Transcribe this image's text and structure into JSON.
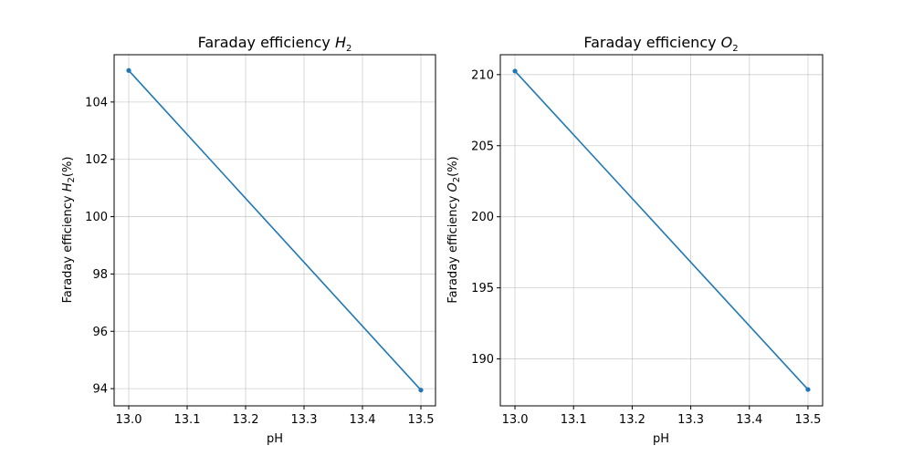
{
  "chart_data": [
    {
      "type": "line",
      "title": "Faraday efficiency ",
      "title_var": "H",
      "title_sub": "2",
      "xlabel": "pH",
      "ylabel_prefix": "Faraday efficiency ",
      "ylabel_var": "H",
      "ylabel_sub": "2",
      "ylabel_suffix": "(%)",
      "x": [
        13.0,
        13.5
      ],
      "y": [
        105.1,
        93.95
      ],
      "xlim": [
        12.975,
        13.525
      ],
      "ylim": [
        93.4,
        105.65
      ],
      "xticks": [
        13.0,
        13.1,
        13.2,
        13.3,
        13.4,
        13.5
      ],
      "xtick_labels": [
        "13.0",
        "13.1",
        "13.2",
        "13.3",
        "13.4",
        "13.5"
      ],
      "yticks": [
        94,
        96,
        98,
        100,
        102,
        104
      ],
      "ytick_labels": [
        "94",
        "96",
        "98",
        "100",
        "102",
        "104"
      ],
      "grid": true,
      "color": "#1f77b4"
    },
    {
      "type": "line",
      "title": "Faraday efficiency ",
      "title_var": "O",
      "title_sub": "2",
      "xlabel": "pH",
      "ylabel_prefix": "Faraday efficiency ",
      "ylabel_var": "O",
      "ylabel_sub": "2",
      "ylabel_suffix": "(%)",
      "x": [
        13.0,
        13.5
      ],
      "y": [
        210.25,
        187.85
      ],
      "xlim": [
        12.975,
        13.525
      ],
      "ylim": [
        186.7,
        211.4
      ],
      "xticks": [
        13.0,
        13.1,
        13.2,
        13.3,
        13.4,
        13.5
      ],
      "xtick_labels": [
        "13.0",
        "13.1",
        "13.2",
        "13.3",
        "13.4",
        "13.5"
      ],
      "yticks": [
        190,
        195,
        200,
        205,
        210
      ],
      "ytick_labels": [
        "190",
        "195",
        "200",
        "205",
        "210"
      ],
      "grid": true,
      "color": "#1f77b4"
    }
  ]
}
